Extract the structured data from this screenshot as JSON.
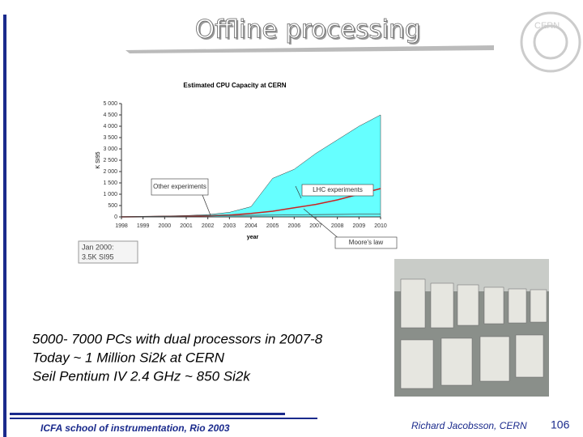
{
  "title": "Offline processing",
  "logo": "CERN",
  "chart_data": {
    "type": "area",
    "title": "Estimated CPU Capacity at CERN",
    "x_label": "year",
    "y_label": "K SI95",
    "x": [
      1998,
      1999,
      2000,
      2001,
      2002,
      2003,
      2004,
      2005,
      2006,
      2007,
      2008,
      2009,
      2010
    ],
    "series": [
      {
        "name": "LHC experiments",
        "color": "#66ffff",
        "values": [
          0,
          20,
          40,
          60,
          100,
          200,
          450,
          1700,
          2100,
          2800,
          3400,
          4000,
          4500
        ]
      },
      {
        "name": "Moore's law",
        "color": "#cc2222",
        "values": [
          0,
          10,
          20,
          35,
          50,
          80,
          150,
          250,
          400,
          550,
          750,
          1000,
          1250
        ]
      },
      {
        "name": "Other experiments",
        "color": "#555555",
        "values": [
          10,
          20,
          30,
          40,
          50,
          60,
          70,
          80,
          90,
          100,
          110,
          120,
          130
        ]
      }
    ],
    "xlim": [
      1998,
      2010
    ],
    "xticks": [
      1998,
      1999,
      2000,
      2001,
      2002,
      2003,
      2004,
      2005,
      2006,
      2007,
      2008,
      2009,
      2010
    ],
    "ylim": [
      0,
      5000
    ],
    "yticks": [
      0,
      500,
      {
        "value": 1000,
        "label": "1 000"
      },
      {
        "value": 1500,
        "label": "1 500"
      },
      {
        "value": 2000,
        "label": "2 000"
      },
      {
        "value": 2500,
        "label": "2 500"
      },
      {
        "value": 3000,
        "label": "3 000"
      },
      {
        "value": 3500,
        "label": "3 500"
      },
      {
        "value": 4000,
        "label": "4 000"
      },
      {
        "value": 4500,
        "label": "4 500"
      },
      {
        "value": 5000,
        "label": "5 000"
      }
    ],
    "annotation": [
      "Jan 2000:",
      "3.5K SI95"
    ]
  },
  "bullets": [
    "5000- 7000 PCs with dual processors in 2007-8",
    "Today ~ 1 Million Si2k at CERN",
    "Seil Pentium IV 2.4 GHz ~ 850 Si2k"
  ],
  "footer": {
    "left": "ICFA school of instrumentation, Rio 2003",
    "right": "Richard Jacobsson, CERN",
    "page": "106"
  }
}
